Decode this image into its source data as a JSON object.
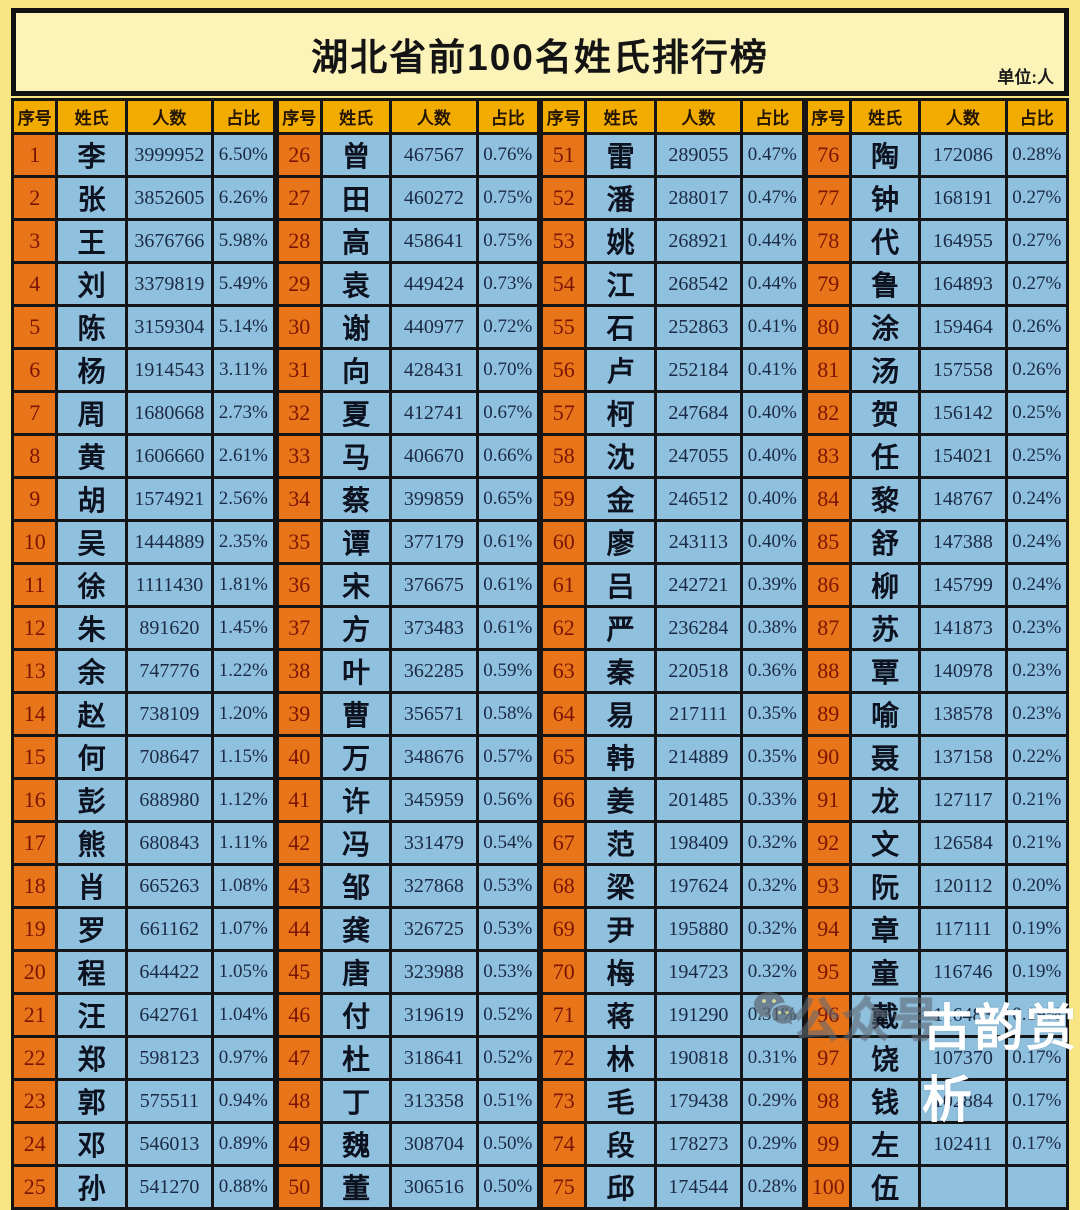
{
  "title": "湖北省前100名姓氏排行榜",
  "unit_label": "单位:人",
  "watermark": {
    "wechat_icon": "wechat-icon",
    "outline_text": "公众号",
    "brand_text": "古韵赏析"
  },
  "colors": {
    "page_bg": "#f8e584",
    "title_box_bg": "#fcf3b8",
    "header_bg": "#f2ac00",
    "rank_cell_bg": "#e87519",
    "rank_text": "#7c1404",
    "data_cell_bg": "#8fc0dd",
    "data_text": "#1b2a45",
    "border": "#151515",
    "watermark_brand_text": "#ffffff"
  },
  "chart_data": {
    "type": "table",
    "title": "湖北省前100名姓氏排行榜",
    "unit": "人",
    "columns": [
      "序号",
      "姓氏",
      "人数",
      "占比"
    ],
    "column_groups": 4,
    "rows_per_group": 25,
    "rows": [
      [
        1,
        "李",
        "3999952",
        "6.50%"
      ],
      [
        2,
        "张",
        "3852605",
        "6.26%"
      ],
      [
        3,
        "王",
        "3676766",
        "5.98%"
      ],
      [
        4,
        "刘",
        "3379819",
        "5.49%"
      ],
      [
        5,
        "陈",
        "3159304",
        "5.14%"
      ],
      [
        6,
        "杨",
        "1914543",
        "3.11%"
      ],
      [
        7,
        "周",
        "1680668",
        "2.73%"
      ],
      [
        8,
        "黄",
        "1606660",
        "2.61%"
      ],
      [
        9,
        "胡",
        "1574921",
        "2.56%"
      ],
      [
        10,
        "吴",
        "1444889",
        "2.35%"
      ],
      [
        11,
        "徐",
        "1111430",
        "1.81%"
      ],
      [
        12,
        "朱",
        "891620",
        "1.45%"
      ],
      [
        13,
        "余",
        "747776",
        "1.22%"
      ],
      [
        14,
        "赵",
        "738109",
        "1.20%"
      ],
      [
        15,
        "何",
        "708647",
        "1.15%"
      ],
      [
        16,
        "彭",
        "688980",
        "1.12%"
      ],
      [
        17,
        "熊",
        "680843",
        "1.11%"
      ],
      [
        18,
        "肖",
        "665263",
        "1.08%"
      ],
      [
        19,
        "罗",
        "661162",
        "1.07%"
      ],
      [
        20,
        "程",
        "644422",
        "1.05%"
      ],
      [
        21,
        "汪",
        "642761",
        "1.04%"
      ],
      [
        22,
        "郑",
        "598123",
        "0.97%"
      ],
      [
        23,
        "郭",
        "575511",
        "0.94%"
      ],
      [
        24,
        "邓",
        "546013",
        "0.89%"
      ],
      [
        25,
        "孙",
        "541270",
        "0.88%"
      ],
      [
        26,
        "曾",
        "467567",
        "0.76%"
      ],
      [
        27,
        "田",
        "460272",
        "0.75%"
      ],
      [
        28,
        "高",
        "458641",
        "0.75%"
      ],
      [
        29,
        "袁",
        "449424",
        "0.73%"
      ],
      [
        30,
        "谢",
        "440977",
        "0.72%"
      ],
      [
        31,
        "向",
        "428431",
        "0.70%"
      ],
      [
        32,
        "夏",
        "412741",
        "0.67%"
      ],
      [
        33,
        "马",
        "406670",
        "0.66%"
      ],
      [
        34,
        "蔡",
        "399859",
        "0.65%"
      ],
      [
        35,
        "谭",
        "377179",
        "0.61%"
      ],
      [
        36,
        "宋",
        "376675",
        "0.61%"
      ],
      [
        37,
        "方",
        "373483",
        "0.61%"
      ],
      [
        38,
        "叶",
        "362285",
        "0.59%"
      ],
      [
        39,
        "曹",
        "356571",
        "0.58%"
      ],
      [
        40,
        "万",
        "348676",
        "0.57%"
      ],
      [
        41,
        "许",
        "345959",
        "0.56%"
      ],
      [
        42,
        "冯",
        "331479",
        "0.54%"
      ],
      [
        43,
        "邹",
        "327868",
        "0.53%"
      ],
      [
        44,
        "龚",
        "326725",
        "0.53%"
      ],
      [
        45,
        "唐",
        "323988",
        "0.53%"
      ],
      [
        46,
        "付",
        "319619",
        "0.52%"
      ],
      [
        47,
        "杜",
        "318641",
        "0.52%"
      ],
      [
        48,
        "丁",
        "313358",
        "0.51%"
      ],
      [
        49,
        "魏",
        "308704",
        "0.50%"
      ],
      [
        50,
        "董",
        "306516",
        "0.50%"
      ],
      [
        51,
        "雷",
        "289055",
        "0.47%"
      ],
      [
        52,
        "潘",
        "288017",
        "0.47%"
      ],
      [
        53,
        "姚",
        "268921",
        "0.44%"
      ],
      [
        54,
        "江",
        "268542",
        "0.44%"
      ],
      [
        55,
        "石",
        "252863",
        "0.41%"
      ],
      [
        56,
        "卢",
        "252184",
        "0.41%"
      ],
      [
        57,
        "柯",
        "247684",
        "0.40%"
      ],
      [
        58,
        "沈",
        "247055",
        "0.40%"
      ],
      [
        59,
        "金",
        "246512",
        "0.40%"
      ],
      [
        60,
        "廖",
        "243113",
        "0.40%"
      ],
      [
        61,
        "吕",
        "242721",
        "0.39%"
      ],
      [
        62,
        "严",
        "236284",
        "0.38%"
      ],
      [
        63,
        "秦",
        "220518",
        "0.36%"
      ],
      [
        64,
        "易",
        "217111",
        "0.35%"
      ],
      [
        65,
        "韩",
        "214889",
        "0.35%"
      ],
      [
        66,
        "姜",
        "201485",
        "0.33%"
      ],
      [
        67,
        "范",
        "198409",
        "0.32%"
      ],
      [
        68,
        "梁",
        "197624",
        "0.32%"
      ],
      [
        69,
        "尹",
        "195880",
        "0.32%"
      ],
      [
        70,
        "梅",
        "194723",
        "0.32%"
      ],
      [
        71,
        "蒋",
        "191290",
        "0.31%"
      ],
      [
        72,
        "林",
        "190818",
        "0.31%"
      ],
      [
        73,
        "毛",
        "179438",
        "0.29%"
      ],
      [
        74,
        "段",
        "178273",
        "0.29%"
      ],
      [
        75,
        "邱",
        "174544",
        "0.28%"
      ],
      [
        76,
        "陶",
        "172086",
        "0.28%"
      ],
      [
        77,
        "钟",
        "168191",
        "0.27%"
      ],
      [
        78,
        "代",
        "164955",
        "0.27%"
      ],
      [
        79,
        "鲁",
        "164893",
        "0.27%"
      ],
      [
        80,
        "涂",
        "159464",
        "0.26%"
      ],
      [
        81,
        "汤",
        "157558",
        "0.26%"
      ],
      [
        82,
        "贺",
        "156142",
        "0.25%"
      ],
      [
        83,
        "任",
        "154021",
        "0.25%"
      ],
      [
        84,
        "黎",
        "148767",
        "0.24%"
      ],
      [
        85,
        "舒",
        "147388",
        "0.24%"
      ],
      [
        86,
        "柳",
        "145799",
        "0.24%"
      ],
      [
        87,
        "苏",
        "141873",
        "0.23%"
      ],
      [
        88,
        "覃",
        "140978",
        "0.23%"
      ],
      [
        89,
        "喻",
        "138578",
        "0.23%"
      ],
      [
        90,
        "聂",
        "137158",
        "0.22%"
      ],
      [
        91,
        "龙",
        "127117",
        "0.21%"
      ],
      [
        92,
        "文",
        "126584",
        "0.21%"
      ],
      [
        93,
        "阮",
        "120112",
        "0.20%"
      ],
      [
        94,
        "章",
        "117111",
        "0.19%"
      ],
      [
        95,
        "童",
        "116746",
        "0.19%"
      ],
      [
        96,
        "戴",
        "116483",
        "0.19%"
      ],
      [
        97,
        "饶",
        "107370",
        "0.17%"
      ],
      [
        98,
        "钱",
        "102884",
        "0.17%"
      ],
      [
        99,
        "左",
        "102411",
        "0.17%"
      ],
      [
        100,
        "伍",
        "",
        ""
      ]
    ]
  }
}
